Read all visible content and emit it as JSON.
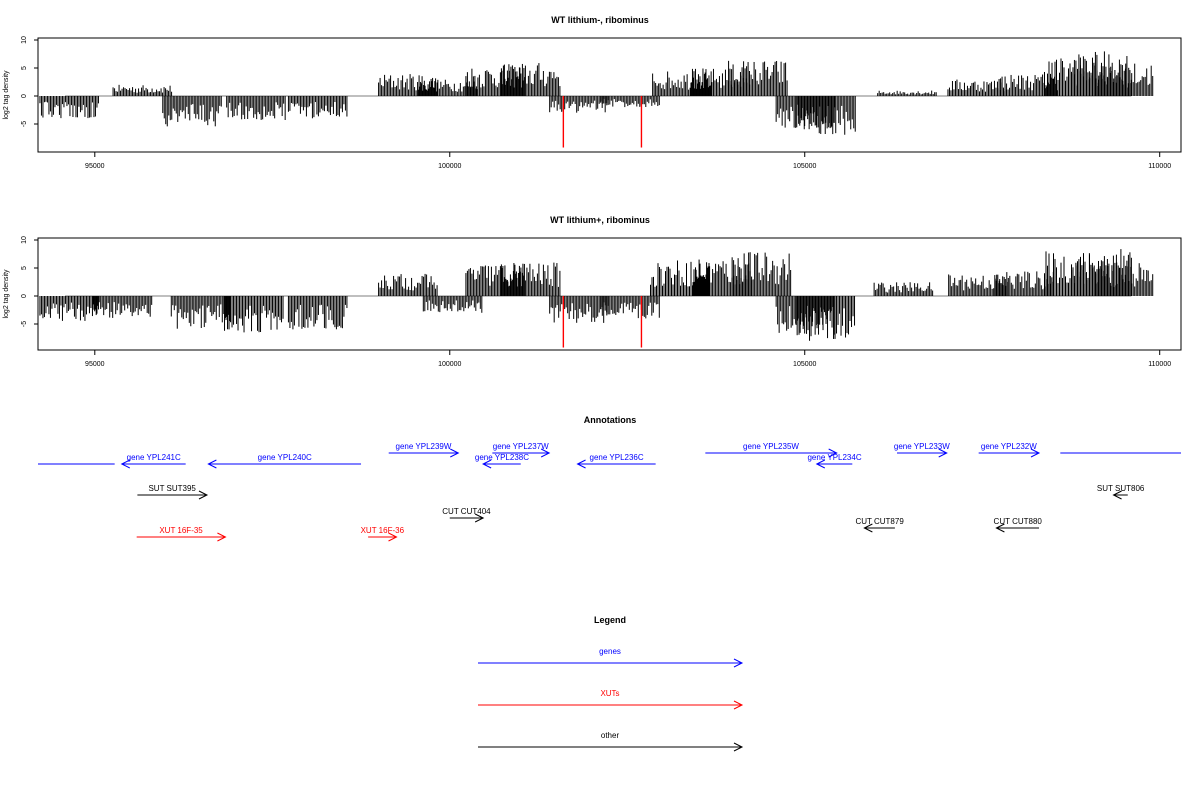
{
  "chart_data": [
    {
      "type": "bar",
      "title": "WT lithium-, ribominus",
      "ylabel": "log2 tag density",
      "xlim": [
        94200,
        110300
      ],
      "ylim": [
        -10,
        10
      ],
      "xticks": [
        95000,
        100000,
        105000,
        110000
      ],
      "yticks": [
        -5,
        0,
        5,
        10
      ],
      "x": [
        94650,
        95680,
        96380,
        97280,
        98150,
        99420,
        99980,
        100650,
        101150,
        101830,
        102550,
        103280,
        103820,
        104350,
        105020,
        105310,
        106450,
        107440,
        108160,
        108800,
        109200,
        109500
      ],
      "values": [
        -4,
        2,
        -5.5,
        -4.5,
        -4,
        4,
        3,
        5.5,
        6,
        -3,
        -2,
        4.5,
        5,
        6.5,
        -6,
        -7,
        1,
        3,
        4,
        7,
        8,
        6
      ],
      "highlight_x": [
        101600,
        102700
      ],
      "highlight_values": [
        -9.2,
        -9.2
      ],
      "bar_color": "#000000",
      "highlight_color": "#ff0000"
    },
    {
      "type": "bar",
      "title": "WT lithium+, ribominus",
      "ylabel": "log2 tag density",
      "xlim": [
        94200,
        110300
      ],
      "ylim": [
        -10,
        10
      ],
      "xticks": [
        95000,
        100000,
        105000,
        110000
      ],
      "yticks": [
        -5,
        0,
        5,
        10
      ],
      "x": [
        94650,
        95400,
        96500,
        97250,
        98150,
        99420,
        100050,
        100650,
        101150,
        101830,
        102550,
        103250,
        103850,
        104400,
        105020,
        105300,
        106400,
        107450,
        108100,
        108800,
        109200,
        109500
      ],
      "values": [
        -4.5,
        -4,
        -6,
        -6.5,
        -6,
        4,
        -3,
        6,
        6,
        -5,
        -4,
        6.5,
        7,
        8,
        -7,
        -8,
        2.5,
        4,
        4.5,
        8,
        8.5,
        6
      ],
      "highlight_x": [
        101600,
        102700
      ],
      "highlight_values": [
        -9.2,
        -9.2
      ],
      "bar_color": "#000000",
      "highlight_color": "#ff0000"
    }
  ],
  "annotations": {
    "title": "Annotations",
    "xlim": [
      94200,
      110300
    ],
    "features": [
      {
        "label": "",
        "type": "gene",
        "start": 94200,
        "end": 95280,
        "strand": "none",
        "row": 1
      },
      {
        "label": "gene YPL241C",
        "type": "gene",
        "start": 95380,
        "end": 96280,
        "strand": "-",
        "row": 1
      },
      {
        "label": "gene YPL240C",
        "type": "gene",
        "start": 96600,
        "end": 98750,
        "strand": "-",
        "row": 1
      },
      {
        "label": "gene YPL239W",
        "type": "gene",
        "start": 99140,
        "end": 100120,
        "strand": "+",
        "row": 0
      },
      {
        "label": "gene YPL237W",
        "type": "gene",
        "start": 100600,
        "end": 101400,
        "strand": "+",
        "row": 0
      },
      {
        "label": "gene YPL238C",
        "type": "gene",
        "start": 100470,
        "end": 101000,
        "strand": "-",
        "row": 1
      },
      {
        "label": "gene YPL236C",
        "type": "gene",
        "start": 101800,
        "end": 102900,
        "strand": "-",
        "row": 1
      },
      {
        "label": "gene YPL235W",
        "type": "gene",
        "start": 103600,
        "end": 105450,
        "strand": "+",
        "row": 0
      },
      {
        "label": "gene YPL234C",
        "type": "gene",
        "start": 105170,
        "end": 105670,
        "strand": "-",
        "row": 1
      },
      {
        "label": "gene YPL233W",
        "type": "gene",
        "start": 106300,
        "end": 107000,
        "strand": "+",
        "row": 0
      },
      {
        "label": "gene YPL232W",
        "type": "gene",
        "start": 107450,
        "end": 108300,
        "strand": "+",
        "row": 0
      },
      {
        "label": "",
        "type": "gene",
        "start": 108600,
        "end": 110300,
        "strand": "none",
        "row": 0
      },
      {
        "label": "SUT SUT395",
        "type": "other",
        "start": 95600,
        "end": 96580,
        "strand": "+",
        "row": 2
      },
      {
        "label": "CUT CUT404",
        "type": "other",
        "start": 100000,
        "end": 100470,
        "strand": "+",
        "row": 3
      },
      {
        "label": "SUT SUT806",
        "type": "other",
        "start": 109350,
        "end": 109550,
        "strand": "-",
        "row": 2
      },
      {
        "label": "CUT CUT879",
        "type": "other",
        "start": 105840,
        "end": 106270,
        "strand": "-",
        "row": 4
      },
      {
        "label": "CUT CUT880",
        "type": "other",
        "start": 107700,
        "end": 108300,
        "strand": "-",
        "row": 4
      },
      {
        "label": "XUT 16F-35",
        "type": "XUT",
        "start": 95590,
        "end": 96840,
        "strand": "+",
        "row": 5
      },
      {
        "label": "XUT 16F-36",
        "type": "XUT",
        "start": 98850,
        "end": 99250,
        "strand": "+",
        "row": 5
      }
    ]
  },
  "legend": {
    "title": "Legend",
    "items": [
      {
        "label": "genes",
        "color": "#0000ff"
      },
      {
        "label": "XUTs",
        "color": "#ff0000"
      },
      {
        "label": "other",
        "color": "#000000"
      }
    ]
  },
  "colors": {
    "gene": "#0000ff",
    "XUT": "#ff0000",
    "other": "#000000"
  }
}
